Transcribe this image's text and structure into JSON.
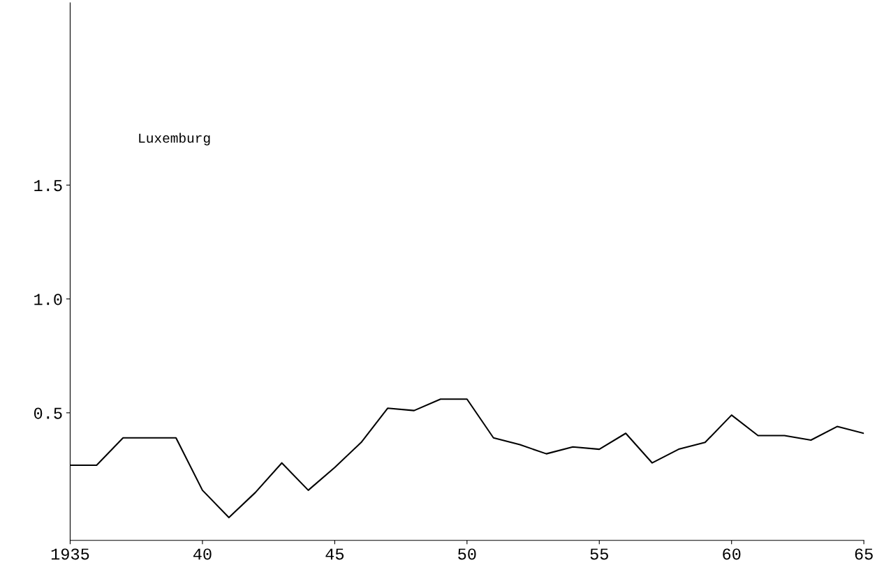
{
  "chart_data": {
    "type": "line",
    "x": [
      1935,
      1936,
      1937,
      1938,
      1939,
      1940,
      1941,
      1942,
      1943,
      1944,
      1945,
      1946,
      1947,
      1948,
      1949,
      1950,
      1951,
      1952,
      1953,
      1954,
      1955,
      1956,
      1957,
      1958,
      1959,
      1960,
      1961,
      1962,
      1963,
      1964,
      1965
    ],
    "series": [
      {
        "color": "#000000",
        "values": [
          0.27,
          0.27,
          0.39,
          0.39,
          0.39,
          0.16,
          0.04,
          0.15,
          0.28,
          0.16,
          0.26,
          0.37,
          0.52,
          0.51,
          0.56,
          0.56,
          0.39,
          0.36,
          0.32,
          0.35,
          0.34,
          0.41,
          0.28,
          0.34,
          0.37,
          0.49,
          0.4,
          0.4,
          0.38,
          0.44,
          0.41
        ]
      }
    ],
    "annotations": [
      "Luxemburg"
    ],
    "xlim": [
      1935,
      1965
    ],
    "xticks": [
      1935,
      {
        "value": 1940,
        "label": "40"
      },
      {
        "value": 1945,
        "label": "45"
      },
      {
        "value": 1950,
        "label": "50"
      },
      {
        "value": 1955,
        "label": "55"
      },
      {
        "value": 1960,
        "label": "60"
      },
      {
        "value": 1965,
        "label": "65"
      }
    ],
    "ylim": [
      -0.06,
      2.3
    ],
    "yticks": [
      0.5,
      {
        "value": 1,
        "label": "1.0"
      },
      1.5
    ],
    "grid": false,
    "legend": false,
    "marker": "none",
    "line_style": "solid"
  }
}
